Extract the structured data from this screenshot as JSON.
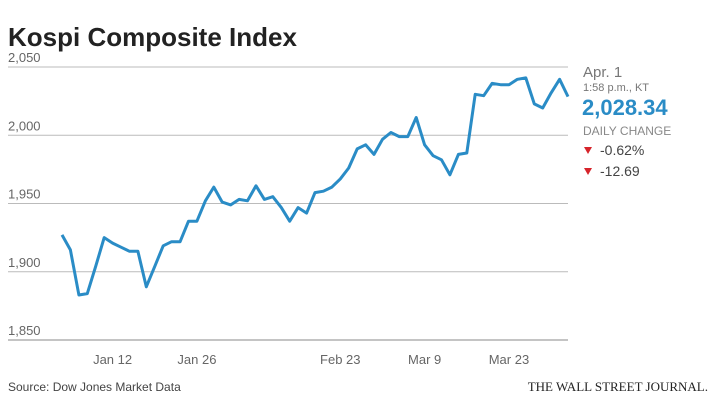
{
  "chart_data": {
    "type": "line",
    "title": "Kospi Composite Index",
    "categories": [
      null,
      null,
      null,
      null,
      null,
      null,
      "Jan 12",
      null,
      null,
      null,
      null,
      null,
      null,
      null,
      null,
      null,
      "Jan 26",
      null,
      null,
      null,
      null,
      null,
      null,
      null,
      null,
      null,
      null,
      null,
      null,
      null,
      null,
      null,
      null,
      "Feb 23",
      null,
      null,
      null,
      null,
      null,
      null,
      null,
      null,
      null,
      "Mar 9",
      null,
      null,
      null,
      null,
      null,
      null,
      null,
      null,
      null,
      "Mar 23",
      null,
      null,
      null,
      null,
      null,
      null,
      null
    ],
    "series": [
      {
        "name": "Kospi",
        "color": "#2a8cc6",
        "values": [
          1927,
          1916,
          1883,
          1884,
          1904,
          1925,
          1921,
          1918,
          1915,
          1915,
          1889,
          1904,
          1919,
          1922,
          1922,
          1937,
          1937,
          1952,
          1962,
          1951,
          1949,
          1953,
          1952,
          1963,
          1953,
          1955,
          1947,
          1937,
          1947,
          1943,
          1958,
          1959,
          1962,
          1968,
          1976,
          1990,
          1993,
          1986,
          1997,
          2002,
          1999,
          1999,
          2013,
          1993,
          1985,
          1982,
          1971,
          1986,
          1987,
          2030,
          2029,
          2038,
          2037,
          2037,
          2041,
          2042,
          2023,
          2020,
          2031,
          2041,
          2028.34
        ]
      }
    ],
    "ylim": [
      1850,
      2050
    ],
    "yticks": [
      {
        "value": 1850,
        "label": "1,850"
      },
      {
        "value": 1900,
        "label": "1,900"
      },
      {
        "value": 1950,
        "label": "1,950"
      },
      {
        "value": 2000,
        "label": "2,000"
      },
      {
        "value": 2050,
        "label": "2,050"
      }
    ],
    "grid": true,
    "latest": {
      "date": "Apr. 1",
      "time": "1:58 p.m., KT",
      "value": "2,028.34",
      "change_title": "DAILY CHANGE",
      "changes": [
        "-0.62%",
        "-12.69"
      ]
    },
    "source": "Source: Dow Jones Market Data",
    "publisher": "THE WALL STREET JOURNAL."
  }
}
